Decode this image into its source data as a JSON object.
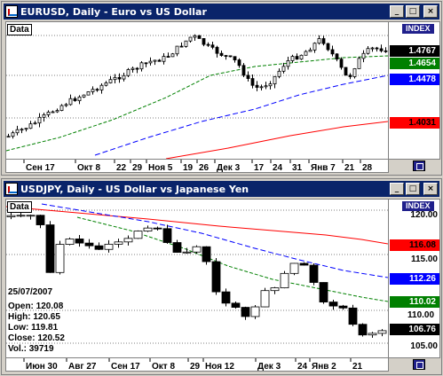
{
  "chart1": {
    "title": "EURUSD, Daily - Euro vs US Dollar",
    "data_label": "Data",
    "index_label": "INDEX",
    "prices": [
      {
        "value": "1.4767",
        "bg": "#000000",
        "fg": "#ffffff"
      },
      {
        "value": "1.4654",
        "bg": "#008000",
        "fg": "#ffffff"
      },
      {
        "value": "1.4478",
        "bg": "#0000ff",
        "fg": "#ffffff"
      },
      {
        "value": "1.4031",
        "bg": "#ff0000",
        "fg": "#ffffff"
      }
    ],
    "time_labels": [
      "Сен 17",
      "Окт 8",
      "22",
      "29",
      "Ноя 5",
      "19",
      "26",
      "Дек 3",
      "17",
      "24",
      "31",
      "Янв 7",
      "21",
      "28"
    ]
  },
  "chart2": {
    "title": "USDJPY, Daily - US Dollar vs Japanese Yen",
    "data_label": "Data",
    "index_label": "INDEX",
    "y_ticks": [
      "120.00",
      "115.00",
      "110.00",
      "105.00"
    ],
    "prices": [
      {
        "value": "116.08",
        "bg": "#ff0000",
        "fg": "#000000"
      },
      {
        "value": "112.26",
        "bg": "#0000ff",
        "fg": "#ffffff"
      },
      {
        "value": "110.02",
        "bg": "#008000",
        "fg": "#ffffff"
      },
      {
        "value": "106.76",
        "bg": "#000000",
        "fg": "#ffffff"
      }
    ],
    "info": {
      "date": "25/07/2007",
      "open": "Open: 120.08",
      "high": "High: 120.65",
      "low": "Low: 119.81",
      "close": "Close: 120.52",
      "vol": "Vol.: 39719"
    },
    "time_labels": [
      "Июн 30",
      "Авг 27",
      "Сен 17",
      "Окт 8",
      "29",
      "Ноя 12",
      "Дек 3",
      "24",
      "Янв 2",
      "21"
    ]
  },
  "window_buttons": {
    "minimize": "_",
    "maximize": "□",
    "close": "×"
  }
}
